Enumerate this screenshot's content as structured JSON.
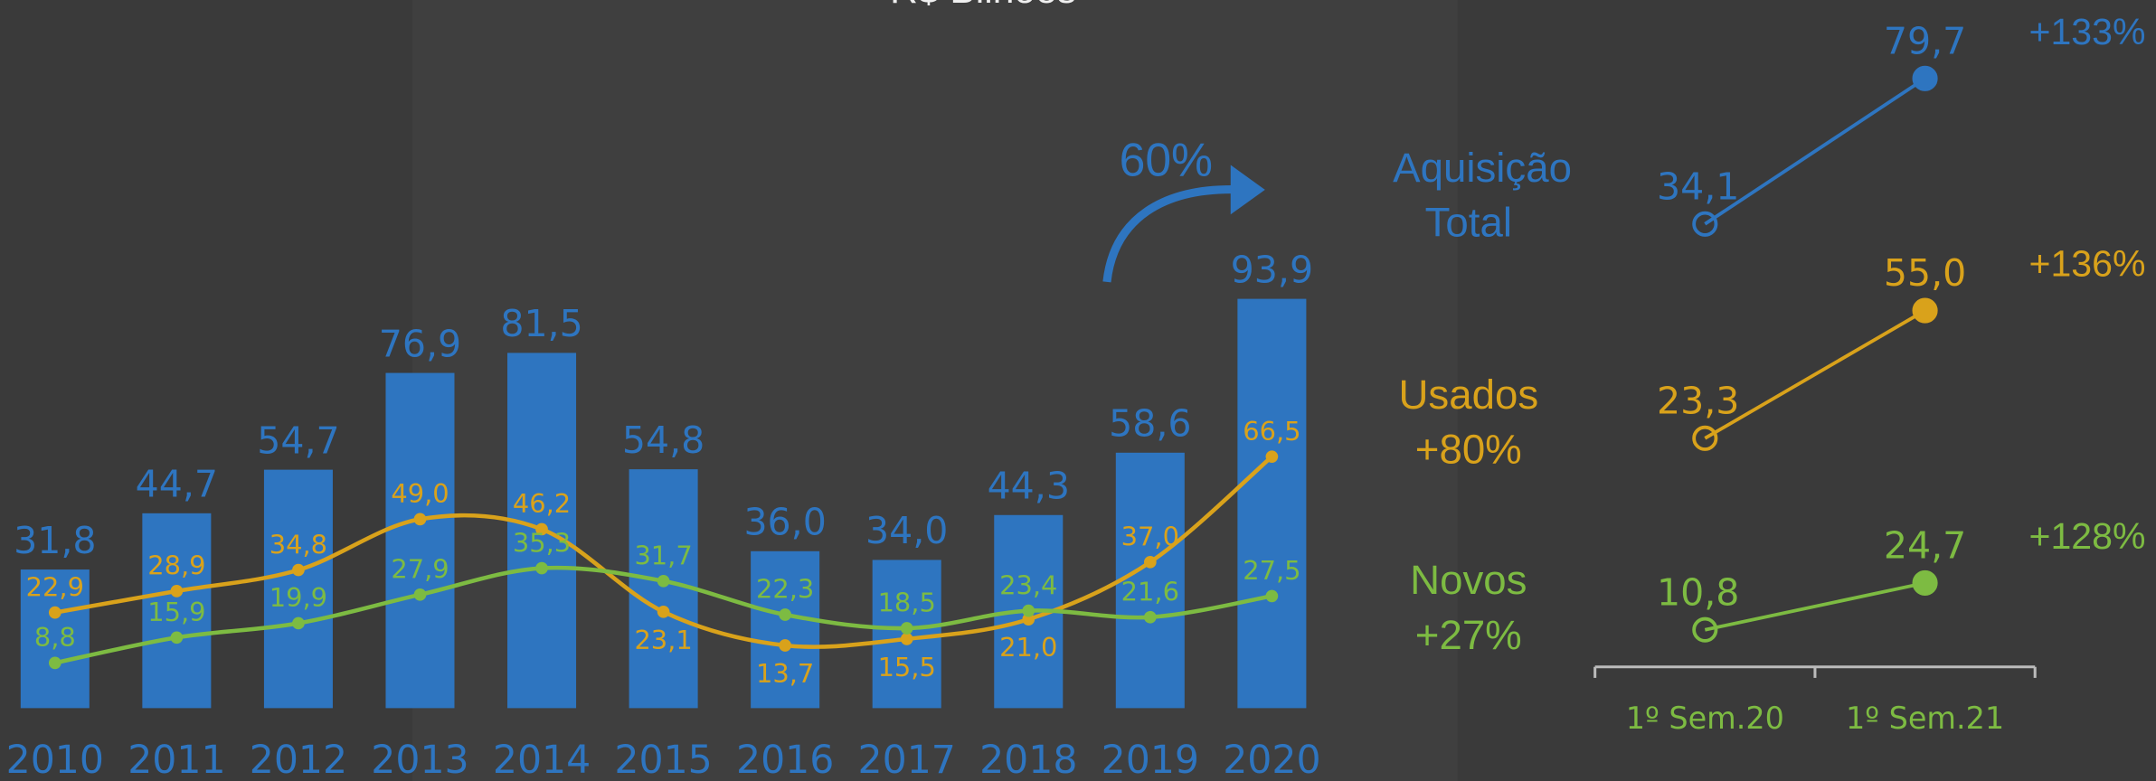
{
  "chart_data": [
    {
      "type": "combo",
      "title": "R$ Bilhões",
      "annotation": "60%",
      "categories": [
        "2010",
        "2011",
        "2012",
        "2013",
        "2014",
        "2015",
        "2016",
        "2017",
        "2018",
        "2019",
        "2020"
      ],
      "series": [
        {
          "kind": "bar",
          "color": "#2e75c0",
          "values": [
            31.8,
            44.7,
            54.7,
            76.9,
            81.5,
            54.8,
            36.0,
            34.0,
            44.3,
            58.6,
            93.9
          ],
          "value_labels": [
            "31,8",
            "44,7",
            "54,7",
            "76,9",
            "81,5",
            "54,8",
            "36,0",
            "34,0",
            "44,3",
            "58,6",
            "93,9"
          ]
        },
        {
          "kind": "line",
          "axis": "y2",
          "color": "#d9a21b",
          "values": [
            22.9,
            28.9,
            34.8,
            49.0,
            46.2,
            23.1,
            13.7,
            15.5,
            21.0,
            37.0,
            66.5
          ],
          "value_labels": [
            "22,9",
            "28,9",
            "34,8",
            "49,0",
            "46,2",
            "23,1",
            "13,7",
            "15,5",
            "21,0",
            "37,0",
            "66,5"
          ]
        },
        {
          "kind": "line",
          "axis": "y2",
          "color": "#7dbb42",
          "values": [
            8.8,
            15.9,
            19.9,
            27.9,
            35.3,
            31.7,
            22.3,
            18.5,
            23.4,
            21.6,
            27.5
          ],
          "value_labels": [
            "8,8",
            "15,9",
            "19,9",
            "27,9",
            "35,3",
            "31,7",
            "22,3",
            "18,5",
            "23,4",
            "21,6",
            "27,5"
          ]
        }
      ]
    },
    {
      "type": "slope",
      "categories": [
        "1º Sem.20",
        "1º Sem.21"
      ],
      "series": [
        {
          "name": "Aquisição Total",
          "color": "#2e75c0",
          "values": [
            34.1,
            79.7
          ],
          "value_labels": [
            "34,1",
            "79,7"
          ],
          "change": "+133%"
        },
        {
          "name": "Usados",
          "growth": "+80%",
          "color": "#d9a21b",
          "values": [
            23.3,
            55.0
          ],
          "value_labels": [
            "23,3",
            "55,0"
          ],
          "change": "+136%"
        },
        {
          "name": "Novos",
          "growth": "+27%",
          "color": "#7dbb42",
          "values": [
            10.8,
            24.7
          ],
          "value_labels": [
            "10,8",
            "24,7"
          ],
          "change": "+128%"
        }
      ]
    }
  ]
}
